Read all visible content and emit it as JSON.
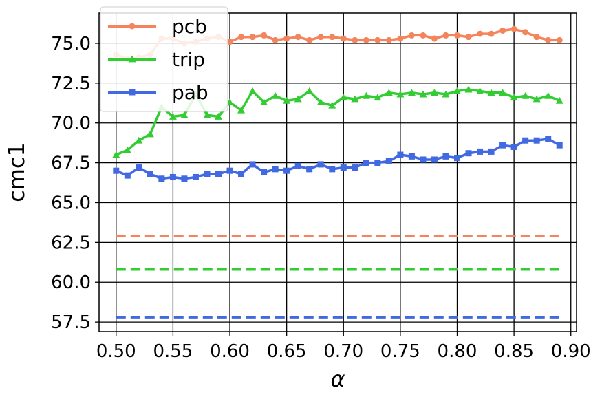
{
  "chart_data": {
    "type": "line",
    "title": "",
    "xlabel": "α",
    "ylabel": "cmc1",
    "xlim": [
      0.485,
      0.905
    ],
    "ylim": [
      56.9,
      76.9
    ],
    "x_ticks": [
      0.5,
      0.55,
      0.6,
      0.65,
      0.7,
      0.75,
      0.8,
      0.85,
      0.9
    ],
    "x_tick_labels": [
      "0.50",
      "0.55",
      "0.60",
      "0.65",
      "0.70",
      "0.75",
      "0.80",
      "0.85",
      "0.90"
    ],
    "y_ticks": [
      57.5,
      60.0,
      62.5,
      65.0,
      67.5,
      70.0,
      72.5,
      75.0
    ],
    "y_tick_labels": [
      "57.5",
      "60.0",
      "62.5",
      "65.0",
      "67.5",
      "70.0",
      "72.5",
      "75.0"
    ],
    "grid": true,
    "legend_position": "top-left",
    "x": [
      0.5,
      0.51,
      0.52,
      0.53,
      0.54,
      0.55,
      0.56,
      0.57,
      0.58,
      0.59,
      0.6,
      0.61,
      0.62,
      0.63,
      0.64,
      0.65,
      0.66,
      0.67,
      0.68,
      0.69,
      0.7,
      0.71,
      0.72,
      0.73,
      0.74,
      0.75,
      0.76,
      0.77,
      0.78,
      0.79,
      0.8,
      0.81,
      0.82,
      0.83,
      0.84,
      0.85,
      0.86,
      0.87,
      0.88,
      0.89
    ],
    "series": [
      {
        "name": "pcb",
        "color": "#f4845c",
        "marker": "circle",
        "values": [
          74.3,
          74.0,
          74.1,
          74.3,
          75.3,
          75.3,
          75.0,
          75.1,
          75.3,
          75.4,
          75.1,
          75.4,
          75.4,
          75.5,
          75.2,
          75.3,
          75.4,
          75.2,
          75.4,
          75.4,
          75.3,
          75.2,
          75.2,
          75.2,
          75.2,
          75.3,
          75.5,
          75.5,
          75.3,
          75.5,
          75.5,
          75.4,
          75.6,
          75.6,
          75.8,
          75.9,
          75.7,
          75.4,
          75.2,
          75.2
        ]
      },
      {
        "name": "trip",
        "color": "#33cc33",
        "marker": "triangle",
        "values": [
          68.0,
          68.3,
          68.9,
          69.3,
          71.0,
          70.4,
          70.5,
          71.8,
          70.5,
          70.4,
          71.3,
          70.8,
          72.0,
          71.3,
          71.7,
          71.4,
          71.5,
          72.0,
          71.3,
          71.1,
          71.6,
          71.5,
          71.7,
          71.6,
          71.9,
          71.8,
          71.9,
          71.8,
          71.9,
          71.8,
          72.0,
          72.1,
          72.0,
          71.9,
          71.9,
          71.6,
          71.7,
          71.5,
          71.7,
          71.4
        ]
      },
      {
        "name": "pab",
        "color": "#4169e1",
        "marker": "square",
        "values": [
          67.0,
          66.7,
          67.2,
          66.8,
          66.5,
          66.6,
          66.5,
          66.6,
          66.8,
          66.8,
          67.0,
          66.8,
          67.4,
          66.9,
          67.1,
          67.0,
          67.3,
          67.1,
          67.4,
          67.1,
          67.2,
          67.2,
          67.5,
          67.5,
          67.6,
          68.0,
          67.9,
          67.7,
          67.7,
          67.9,
          67.8,
          68.1,
          68.2,
          68.2,
          68.6,
          68.5,
          68.9,
          68.9,
          69.0,
          68.6
        ]
      }
    ],
    "baselines": [
      {
        "color": "#f4845c",
        "value": 62.9,
        "style": "dashed",
        "x_range": [
          0.5,
          0.89
        ]
      },
      {
        "color": "#33cc33",
        "value": 60.8,
        "style": "dashed",
        "x_range": [
          0.5,
          0.89
        ]
      },
      {
        "color": "#4169e1",
        "value": 57.8,
        "style": "dashed",
        "x_range": [
          0.5,
          0.89
        ]
      }
    ]
  }
}
